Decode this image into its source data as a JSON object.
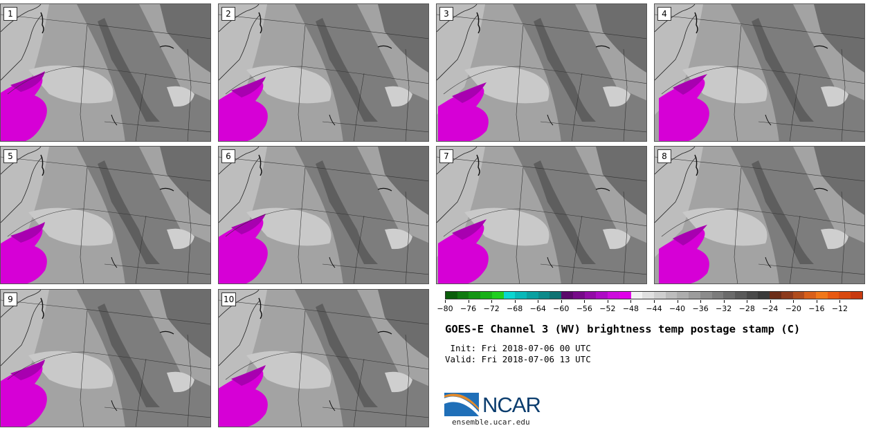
{
  "panels": [
    {
      "label": "1"
    },
    {
      "label": "2"
    },
    {
      "label": "3"
    },
    {
      "label": "4"
    },
    {
      "label": "5"
    },
    {
      "label": "6"
    },
    {
      "label": "7"
    },
    {
      "label": "8"
    },
    {
      "label": "9"
    },
    {
      "label": "10"
    }
  ],
  "colorbar": {
    "ticks": [
      "−80",
      "−76",
      "−72",
      "−68",
      "−64",
      "−60",
      "−56",
      "−52",
      "−48",
      "−44",
      "−40",
      "−36",
      "−32",
      "−28",
      "−24",
      "−20",
      "−16",
      "−12"
    ],
    "colors": [
      "#0a5d0a",
      "#0f7a0f",
      "#139513",
      "#18b018",
      "#1fcf1f",
      "#0ad6d0",
      "#08b8b8",
      "#0aa0a0",
      "#0d8a8a",
      "#0e7272",
      "#5a0a6a",
      "#760a88",
      "#920ca6",
      "#ad0cc4",
      "#cc0cdc",
      "#e000e8",
      "#f2f2f2",
      "#e0e0e0",
      "#cfcfcf",
      "#bdbdbd",
      "#adadad",
      "#9c9c9c",
      "#8c8c8c",
      "#7c7c7c",
      "#6b6b6b",
      "#5a5a5a",
      "#4a4a4a",
      "#3a3a3a",
      "#6b2d18",
      "#8c3a1c",
      "#b04c1c",
      "#d8601a",
      "#f0781a",
      "#e85a12",
      "#d84a10",
      "#c83a10"
    ]
  },
  "title": "GOES-E Channel 3 (WV) brightness temp postage stamp (C)",
  "init_text": " Init: Fri 2018-07-06 00 UTC",
  "valid_text": "Valid: Fri 2018-07-06 13 UTC",
  "logo": {
    "name": "NCAR",
    "url": "ensemble.ucar.edu"
  }
}
